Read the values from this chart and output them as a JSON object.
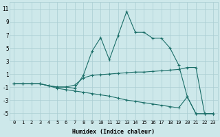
{
  "xlabel": "Humidex (Indice chaleur)",
  "background_color": "#cde8ea",
  "grid_color": "#aacdd2",
  "line_color": "#1b6e68",
  "xlim": [
    -0.5,
    23.5
  ],
  "ylim": [
    -6,
    12
  ],
  "xtick_labels": [
    "0",
    "1",
    "2",
    "3",
    "4",
    "5",
    "6",
    "7",
    "8",
    "9",
    "10",
    "11",
    "12",
    "13",
    "14",
    "15",
    "16",
    "17",
    "18",
    "19",
    "20",
    "21",
    "22",
    "23"
  ],
  "ytick_values": [
    -5,
    -3,
    -1,
    1,
    3,
    5,
    7,
    9,
    11
  ],
  "line_peak_x": [
    0,
    1,
    2,
    3,
    4,
    5,
    6,
    7,
    8,
    9,
    10,
    11,
    12,
    13,
    14,
    15,
    16,
    17,
    18,
    19,
    20,
    21,
    22,
    23
  ],
  "line_peak_y": [
    -0.5,
    -0.5,
    -0.5,
    -0.5,
    -0.8,
    -1.0,
    -1.0,
    -1.2,
    0.8,
    4.5,
    6.6,
    3.2,
    6.9,
    10.6,
    7.4,
    7.4,
    6.5,
    6.5,
    5.0,
    2.4,
    -2.5,
    -5.1,
    -5.1,
    -5.1
  ],
  "line_mid_x": [
    0,
    1,
    2,
    3,
    4,
    5,
    6,
    7,
    8,
    9,
    10,
    11,
    12,
    13,
    14,
    15,
    16,
    17,
    18,
    19,
    20,
    21,
    22,
    23
  ],
  "line_mid_y": [
    -0.5,
    -0.5,
    -0.5,
    -0.5,
    -0.8,
    -1.0,
    -1.0,
    -0.7,
    0.4,
    0.8,
    0.9,
    1.0,
    1.1,
    1.2,
    1.3,
    1.3,
    1.4,
    1.5,
    1.6,
    1.7,
    2.0,
    2.0,
    -5.1,
    -5.1
  ],
  "line_bot_x": [
    0,
    1,
    2,
    3,
    4,
    5,
    6,
    7,
    8,
    9,
    10,
    11,
    12,
    13,
    14,
    15,
    16,
    17,
    18,
    19,
    20,
    21,
    22,
    23
  ],
  "line_bot_y": [
    -0.5,
    -0.5,
    -0.5,
    -0.5,
    -0.8,
    -1.2,
    -1.4,
    -1.6,
    -1.8,
    -2.0,
    -2.2,
    -2.4,
    -2.7,
    -3.0,
    -3.2,
    -3.4,
    -3.6,
    -3.8,
    -4.0,
    -4.2,
    -2.5,
    -5.1,
    -5.1,
    -5.1
  ]
}
